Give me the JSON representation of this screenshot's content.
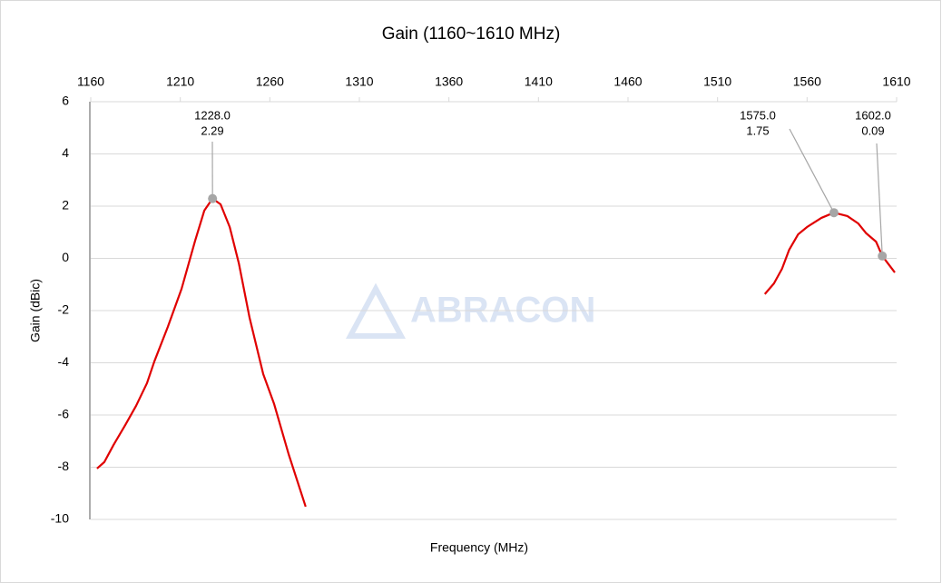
{
  "chart_data": {
    "type": "line",
    "title": "Gain (1160~1610 MHz)",
    "x_label": "Frequency (MHz)",
    "y_label": "Gain (dBic)",
    "watermark": "ABRACON",
    "xlim": [
      1160,
      1610
    ],
    "xticks": [
      1160,
      1210,
      1260,
      1310,
      1360,
      1410,
      1460,
      1510,
      1560,
      1610
    ],
    "ylim": [
      -10,
      6
    ],
    "yticks": [
      -10,
      -8,
      -6,
      -4,
      -2,
      0,
      2,
      4,
      6
    ],
    "grid": true,
    "series": [
      {
        "name": "Gain",
        "color": "#e00000",
        "x": [
          1163.5,
          1167.6,
          1172.7,
          1179.3,
          1185.3,
          1191.4,
          1195.5,
          1203,
          1210.7,
          1218.3,
          1223.4,
          1228,
          1232.5,
          1237.6,
          1242.7,
          1248.7,
          1256.3,
          1262.4,
          1270.5,
          1280,
          null,
          1536.4,
          1541.5,
          1546,
          1550,
          1555,
          1560,
          1568,
          1575,
          1582.5,
          1588.5,
          1593,
          1598.5,
          1602,
          1609
        ],
        "values": [
          -8.05,
          -7.8,
          -7.15,
          -6.38,
          -5.65,
          -4.78,
          -3.95,
          -2.63,
          -1.17,
          0.68,
          1.83,
          2.29,
          2.07,
          1.2,
          -0.19,
          -2.28,
          -4.43,
          -5.58,
          -7.5,
          -9.51,
          null,
          -1.37,
          -0.96,
          -0.4,
          0.33,
          0.92,
          1.2,
          1.55,
          1.75,
          1.62,
          1.34,
          0.96,
          0.64,
          0.09,
          -0.54
        ]
      }
    ],
    "annotations": [
      {
        "x": 1228,
        "x_label": "1228.0",
        "y": 2.29
      },
      {
        "x": 1575,
        "x_label": "1575.0",
        "y": 1.75
      },
      {
        "x": 1602,
        "x_label": "1602.0",
        "y": 0.09
      }
    ]
  }
}
